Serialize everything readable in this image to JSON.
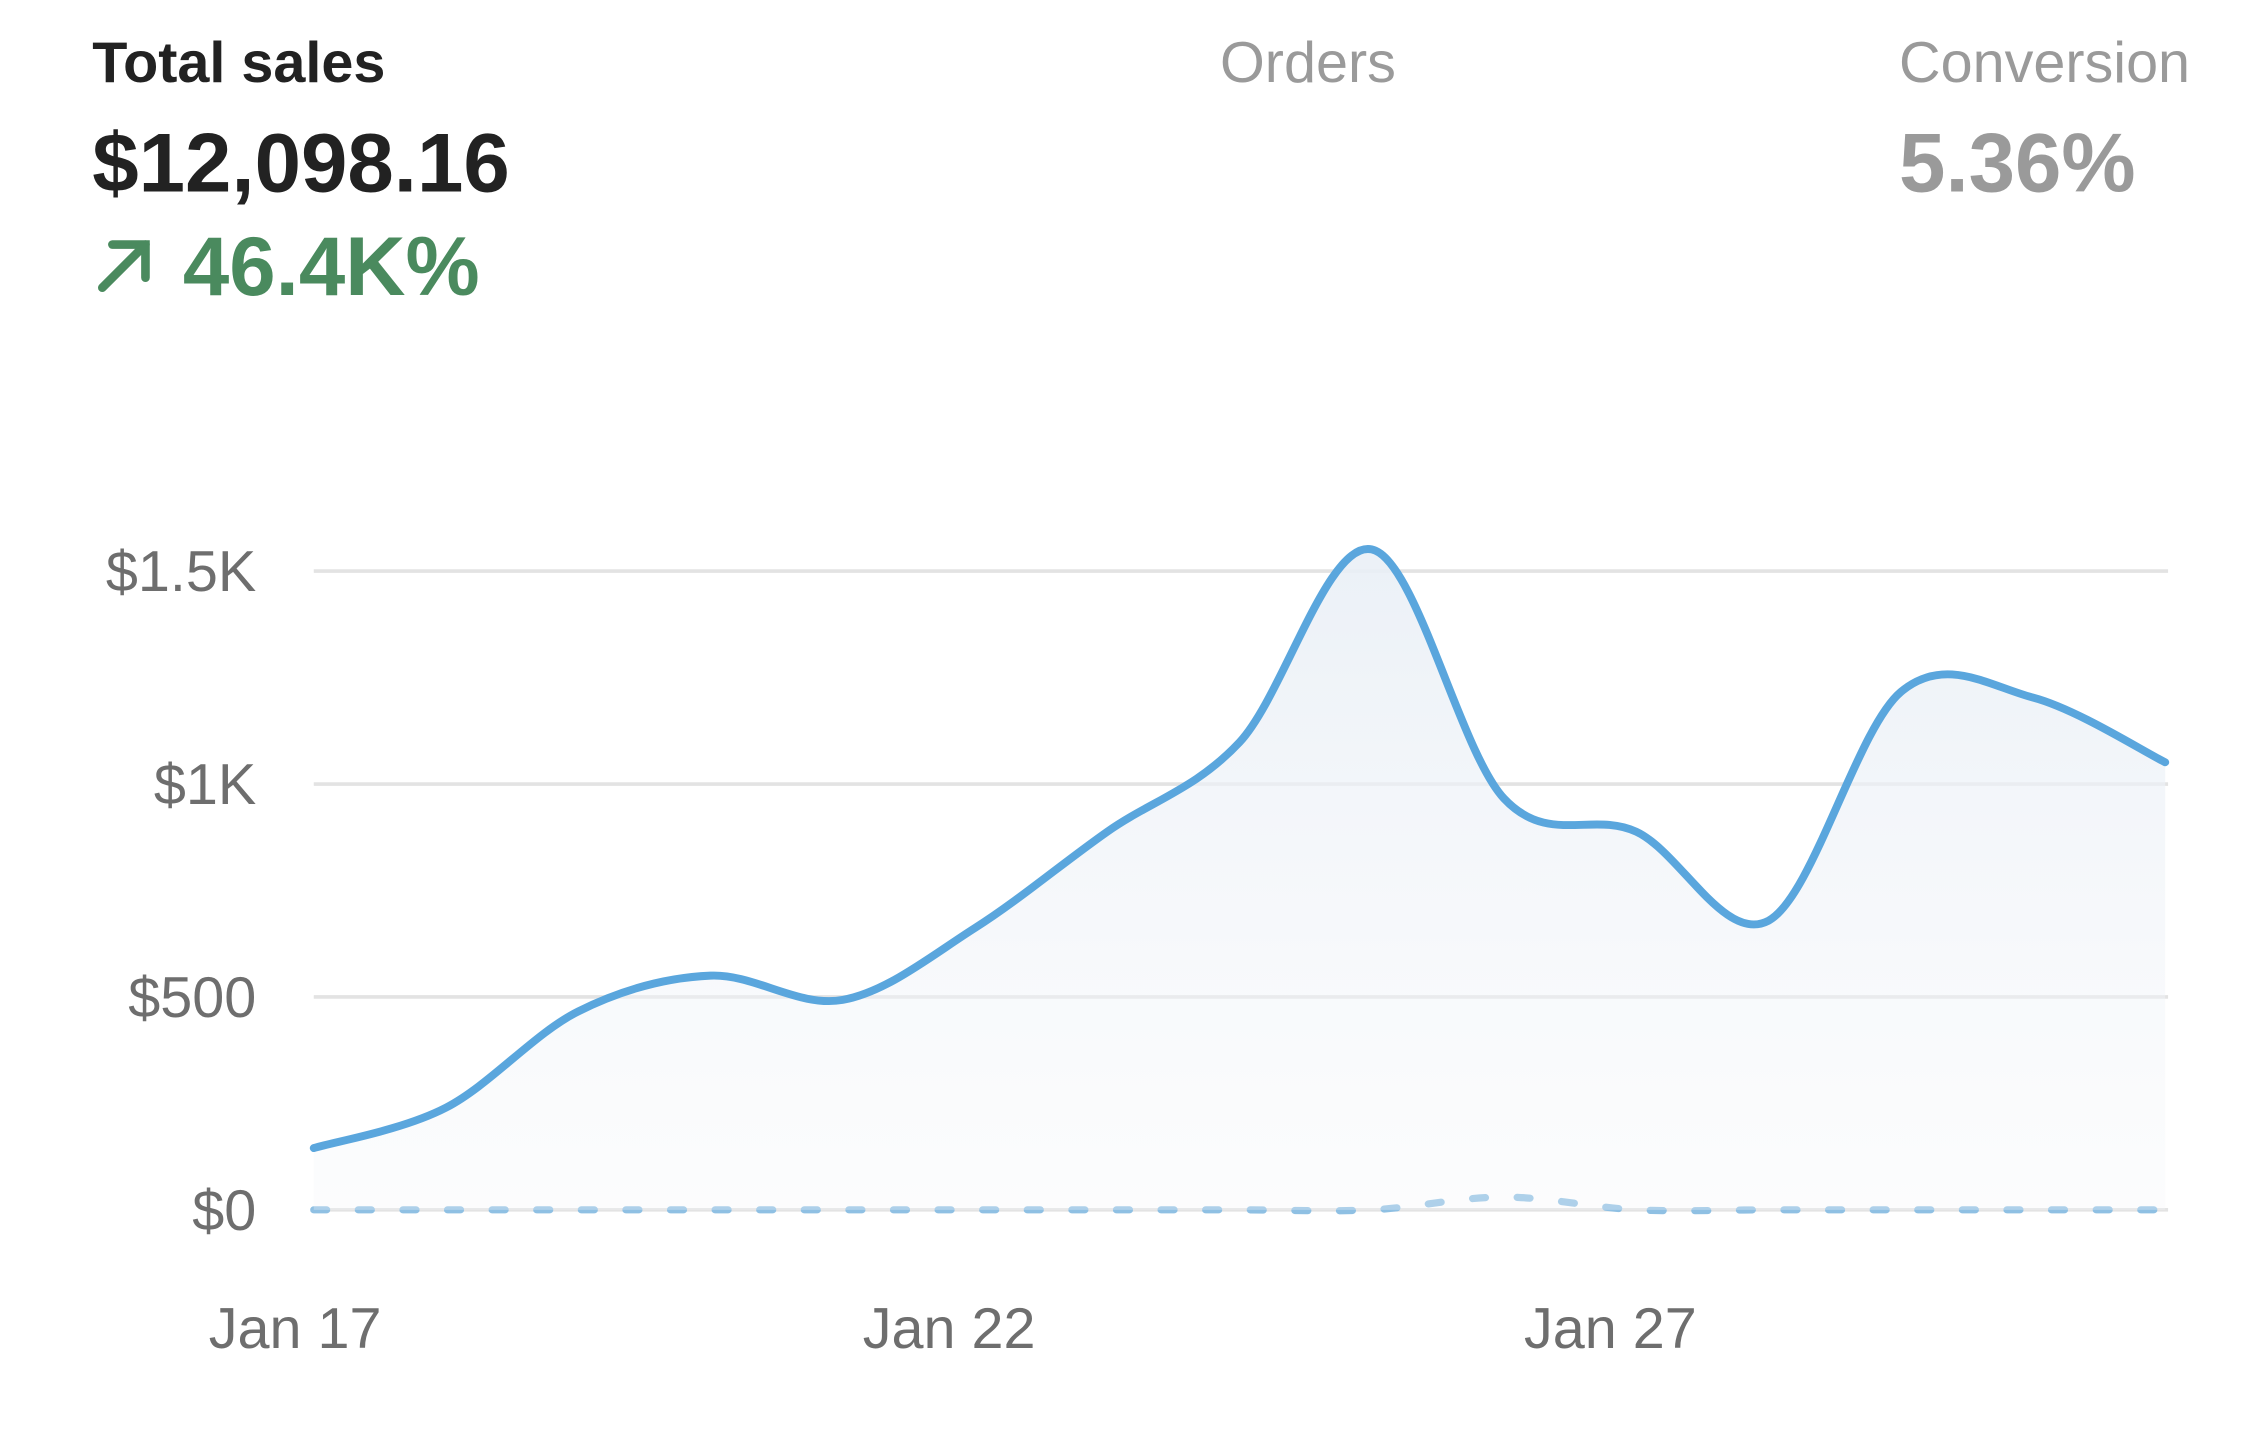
{
  "header": {
    "metrics": [
      {
        "label": "Total sales",
        "value": "$12,098.16",
        "change": "46.4K%"
      },
      {
        "label": "Orders"
      },
      {
        "label": "Conversion",
        "value": "5.36%"
      }
    ]
  },
  "chart_data": {
    "type": "line",
    "categories": [
      "Jan 17",
      null,
      null,
      null,
      null,
      "Jan 22",
      null,
      null,
      null,
      null,
      "Jan 27",
      null,
      null,
      null,
      null
    ],
    "series": [
      {
        "color": "#5aa6dd",
        "dashed": false,
        "values": [
          145,
          240,
          466,
          550,
          493,
          662,
          888,
          1098,
          1551,
          966,
          888,
          679,
          1216,
          1203,
          1051
        ]
      },
      {
        "color": "#8fc0e3",
        "dashed": true,
        "values": [
          0,
          0,
          0,
          0,
          0,
          0,
          0,
          0,
          0,
          30,
          0,
          0,
          0,
          0,
          0
        ]
      }
    ],
    "ylim": [
      0,
      1500
    ],
    "yticks": [
      {
        "value": 0,
        "label": "$0"
      },
      {
        "value": 500,
        "label": "$500"
      },
      {
        "value": 1000,
        "label": "$1K"
      },
      {
        "value": 1500,
        "label": "$1.5K"
      }
    ],
    "grid": true,
    "area": true
  }
}
